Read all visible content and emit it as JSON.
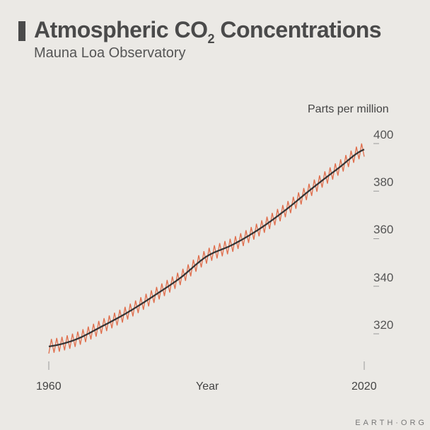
{
  "chart_data": {
    "type": "line",
    "title_main": "Atmospheric CO",
    "title_sub": "2",
    "title_end": " Concentrations",
    "subtitle": "Mauna Loa Observatory",
    "ylabel": "Parts per million",
    "xlabel": "Year",
    "xlim": [
      1960,
      2020
    ],
    "ylim": [
      310,
      400
    ],
    "x_ticks": [
      "1960",
      "2020"
    ],
    "y_ticks": [
      "320",
      "340",
      "360",
      "380",
      "400"
    ],
    "grid": false,
    "series": [
      {
        "role": "monthly",
        "color": "#e06e4c",
        "seasonal_amplitude_ppm": 3
      },
      {
        "role": "trend",
        "color": "#333333"
      }
    ],
    "trend": {
      "x": [
        1960,
        1965,
        1970,
        1975,
        1980,
        1985,
        1990,
        1995,
        2000,
        2005,
        2010,
        2015,
        2020
      ],
      "y": [
        314.7,
        317.5,
        323,
        329,
        336,
        343.5,
        352.5,
        357.5,
        364,
        372,
        381,
        389.5,
        397.5
      ]
    }
  },
  "branding": {
    "logo": "EARTH·ORG"
  },
  "colors": {
    "background": "#ebe9e5",
    "accent": "#e06e4c",
    "trend": "#333333"
  }
}
